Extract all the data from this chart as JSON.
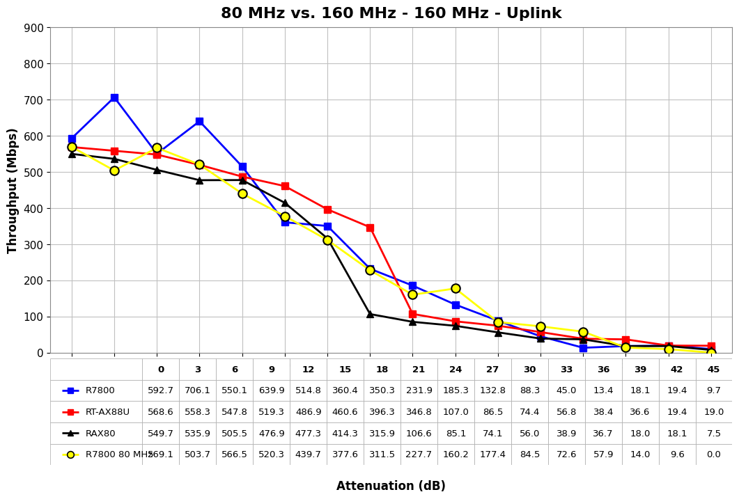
{
  "title": "80 MHz vs. 160 MHz - 160 MHz - Uplink",
  "xlabel": "Attenuation (dB)",
  "ylabel": "Throughput (Mbps)",
  "x_labels": [
    0,
    3,
    6,
    9,
    12,
    15,
    18,
    21,
    24,
    27,
    30,
    33,
    36,
    39,
    42,
    45
  ],
  "series": [
    {
      "label": "R7800",
      "color": "#0000FF",
      "marker": "s",
      "row_color": "#FFFFFF",
      "values": [
        592.7,
        706.1,
        550.1,
        639.9,
        514.8,
        360.4,
        350.3,
        231.9,
        185.3,
        132.8,
        88.3,
        45.0,
        13.4,
        18.1,
        19.4,
        9.7
      ]
    },
    {
      "label": "RT-AX88U",
      "color": "#FF0000",
      "marker": "s",
      "row_color": "#FFFFFF",
      "values": [
        568.6,
        558.3,
        547.8,
        519.3,
        486.9,
        460.6,
        396.3,
        346.8,
        107.0,
        86.5,
        74.4,
        56.8,
        38.4,
        36.6,
        19.4,
        19.0
      ]
    },
    {
      "label": "RAX80",
      "color": "#000000",
      "marker": "^",
      "row_color": "#FFFFFF",
      "values": [
        549.7,
        535.9,
        505.5,
        476.9,
        477.3,
        414.3,
        315.9,
        106.6,
        85.1,
        74.1,
        56.0,
        38.9,
        36.7,
        18.0,
        18.1,
        7.5
      ]
    },
    {
      "label": "R7800 80 MHz",
      "color": "#FFFF00",
      "marker": "o",
      "row_color": "#FFFFFF",
      "values": [
        569.1,
        503.7,
        566.5,
        520.3,
        439.7,
        377.6,
        311.5,
        227.7,
        160.2,
        177.4,
        84.5,
        72.6,
        57.9,
        14.0,
        9.6,
        0.0
      ]
    }
  ],
  "ylim": [
    0,
    900
  ],
  "yticks": [
    0,
    100,
    200,
    300,
    400,
    500,
    600,
    700,
    800,
    900
  ],
  "grid_color": "#C0C0C0",
  "bg_color": "#FFFFFF",
  "title_fontsize": 16,
  "axis_label_fontsize": 12,
  "tick_fontsize": 11,
  "table_fontsize": 9.5,
  "line_width": 2.0,
  "marker_size": 7
}
